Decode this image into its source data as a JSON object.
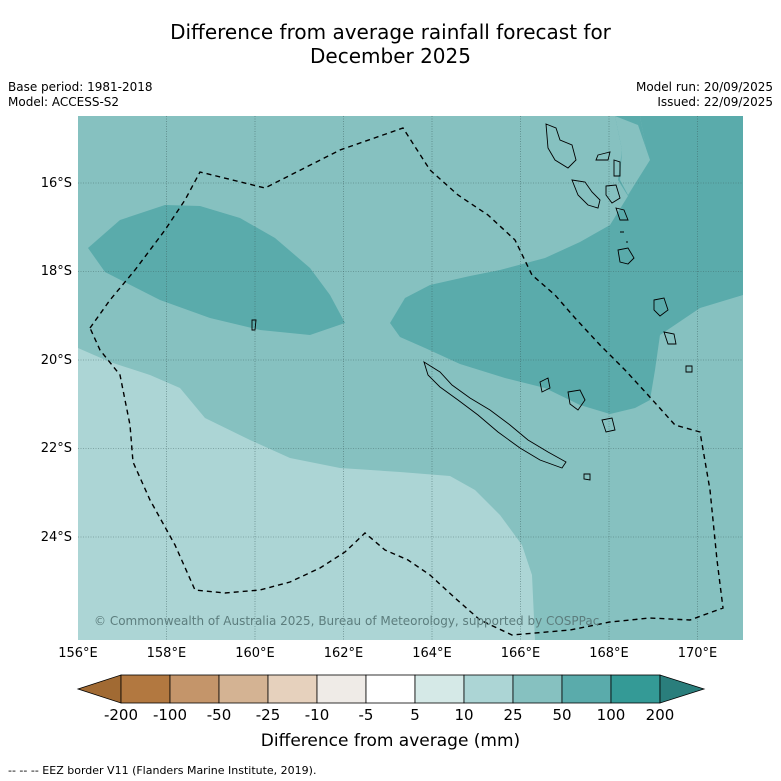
{
  "title": {
    "line1": "Difference from average rainfall forecast for",
    "line2": "December 2025"
  },
  "meta": {
    "base_period": "Base period: 1981-2018",
    "model": "Model: ACCESS-S2",
    "model_run": "Model run: 20/09/2025",
    "issued": "Issued: 22/09/2025"
  },
  "map": {
    "latitude_labels": [
      "16°S",
      "18°S",
      "20°S",
      "22°S",
      "24°S"
    ],
    "longitude_labels": [
      "156°E",
      "158°E",
      "160°E",
      "162°E",
      "164°E",
      "166°E",
      "168°E",
      "170°E"
    ],
    "copyright": "© Commonwealth of Australia 2025, Bureau of Meteorology, supported by COSPPac",
    "regions": {
      "below_10_25": "#acd5d5",
      "band_25_50": "#86c1c0",
      "band_50_100": "#5aabab"
    }
  },
  "colorbar": {
    "title": "Difference from average (mm)",
    "ticks": [
      "-200",
      "-100",
      "-50",
      "-25",
      "-10",
      "-5",
      "5",
      "10",
      "25",
      "50",
      "100",
      "200"
    ],
    "colors": [
      "#a16a33",
      "#b27840",
      "#c4956a",
      "#d4b393",
      "#e6d1bd",
      "#efebe7",
      "#ffffff",
      "#d5e9e7",
      "#acd5d5",
      "#86c1c0",
      "#5aabab",
      "#349a96",
      "#2a7e7c"
    ]
  },
  "footnote": "-- -- -- EEZ border V11 (Flanders Marine Institute, 2019)."
}
